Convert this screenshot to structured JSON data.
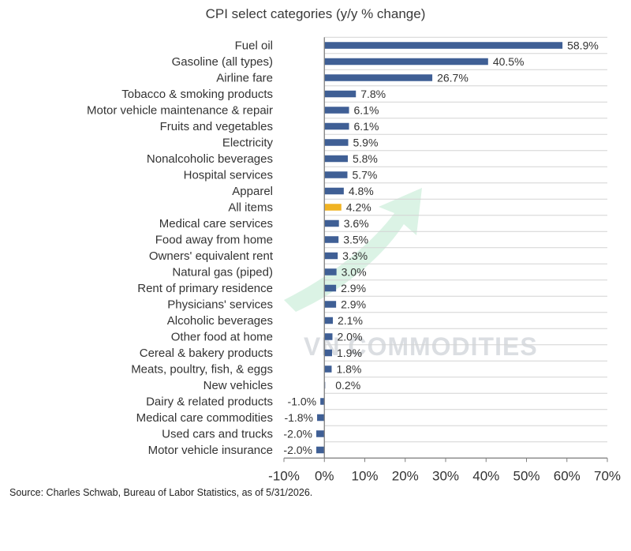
{
  "chart_data": {
    "type": "bar",
    "orientation": "horizontal",
    "title": "CPI select categories (y/y % change)",
    "categories": [
      "Fuel oil",
      "Gasoline (all types)",
      "Airline fare",
      "Tobacco & smoking products",
      "Motor vehicle maintenance & repair",
      "Fruits and vegetables",
      "Electricity",
      "Nonalcoholic beverages",
      "Hospital services",
      "Apparel",
      "All items",
      "Medical care services",
      "Food away from home",
      "Owners' equivalent rent",
      "Natural gas (piped)",
      "Rent of primary residence",
      "Physicians' services",
      "Alcoholic beverages",
      "Other food at home",
      "Cereal & bakery products",
      "Meats, poultry, fish, & eggs",
      "New vehicles",
      "Dairy & related products",
      "Medical care commodities",
      "Used cars and trucks",
      "Motor vehicle insurance"
    ],
    "values": [
      58.9,
      40.5,
      26.7,
      7.8,
      6.1,
      6.1,
      5.9,
      5.8,
      5.7,
      4.8,
      4.2,
      3.6,
      3.5,
      3.3,
      3.0,
      2.9,
      2.9,
      2.1,
      2.0,
      1.9,
      1.8,
      0.2,
      -1.0,
      -1.8,
      -2.0,
      -2.0
    ],
    "value_labels": [
      "58.9%",
      "40.5%",
      "26.7%",
      "7.8%",
      "6.1%",
      "6.1%",
      "5.9%",
      "5.8%",
      "5.7%",
      "4.8%",
      "4.2%",
      "3.6%",
      "3.5%",
      "3.3%",
      "3.0%",
      "2.9%",
      "2.9%",
      "2.1%",
      "2.0%",
      "1.9%",
      "1.8%",
      "0.2%",
      "-1.0%",
      "-1.8%",
      "-2.0%",
      "-2.0%"
    ],
    "highlight_category": "All items",
    "xlim": [
      -10,
      70
    ],
    "xticks": [
      -10,
      0,
      10,
      20,
      30,
      40,
      50,
      60,
      70
    ],
    "xtick_labels": [
      "-10%",
      "0%",
      "10%",
      "20%",
      "30%",
      "40%",
      "50%",
      "60%",
      "70%"
    ],
    "grid": "horizontal",
    "colors": {
      "bar": "#3f5f95",
      "highlight": "#f0b323",
      "grid": "#d3d3d3",
      "axis": "#7f7f7f"
    }
  },
  "watermark": {
    "text": "VN COMMODITIES"
  },
  "source": "Source: Charles Schwab, Bureau of Labor Statistics, as of 5/31/2026."
}
